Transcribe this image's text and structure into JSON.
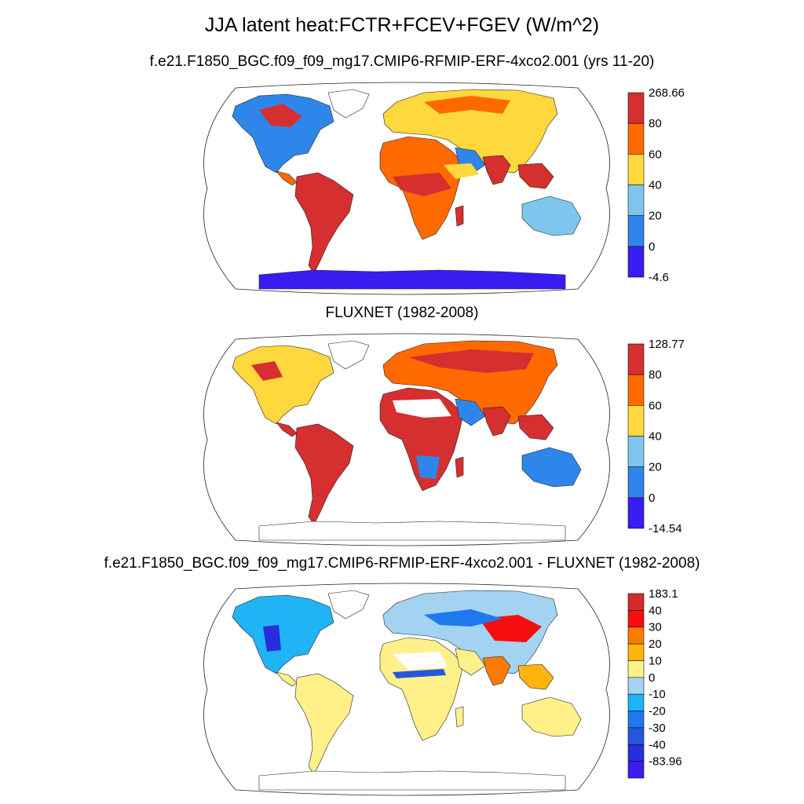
{
  "title": "JJA latent heat:FCTR+FCEV+FGEV (W/m^2)",
  "panels": [
    {
      "id": "model",
      "subtitle": "f.e21.F1850_BGC.f09_f09_mg17.CMIP6-RFMIP-ERF-4xco2.001 (yrs 11-20)",
      "colorbar": {
        "labels": [
          "268.66",
          "80",
          "60",
          "40",
          "20",
          "0",
          "-4.6"
        ],
        "colors": [
          "#d62f2f",
          "#ff6a00",
          "#ffd83d",
          "#7ec6ee",
          "#2f86ea",
          "#3b1cf0"
        ]
      },
      "antarctica_fill": true
    },
    {
      "id": "obs",
      "subtitle": "FLUXNET (1982-2008)",
      "colorbar": {
        "labels": [
          "128.77",
          "80",
          "60",
          "40",
          "20",
          "0",
          "-14.54"
        ],
        "colors": [
          "#d62f2f",
          "#ff6a00",
          "#ffd83d",
          "#7ec6ee",
          "#2f86ea",
          "#3b1cf0"
        ]
      },
      "antarctica_fill": false
    },
    {
      "id": "diff",
      "subtitle": "f.e21.F1850_BGC.f09_f09_mg17.CMIP6-RFMIP-ERF-4xco2.001 - FLUXNET (1982-2008)",
      "colorbar": {
        "labels": [
          "183.1",
          "40",
          "30",
          "20",
          "10",
          "0",
          "-10",
          "-20",
          "-30",
          "-40",
          "-83.96"
        ],
        "colors": [
          "#d42b2b",
          "#f50f0f",
          "#ff7b00",
          "#ffb30f",
          "#fff08a",
          "#a3d3f0",
          "#20b4f5",
          "#1f79ee",
          "#2456de",
          "#2a2ddd",
          "#3b1cf0"
        ]
      },
      "antarctica_fill": false
    }
  ]
}
